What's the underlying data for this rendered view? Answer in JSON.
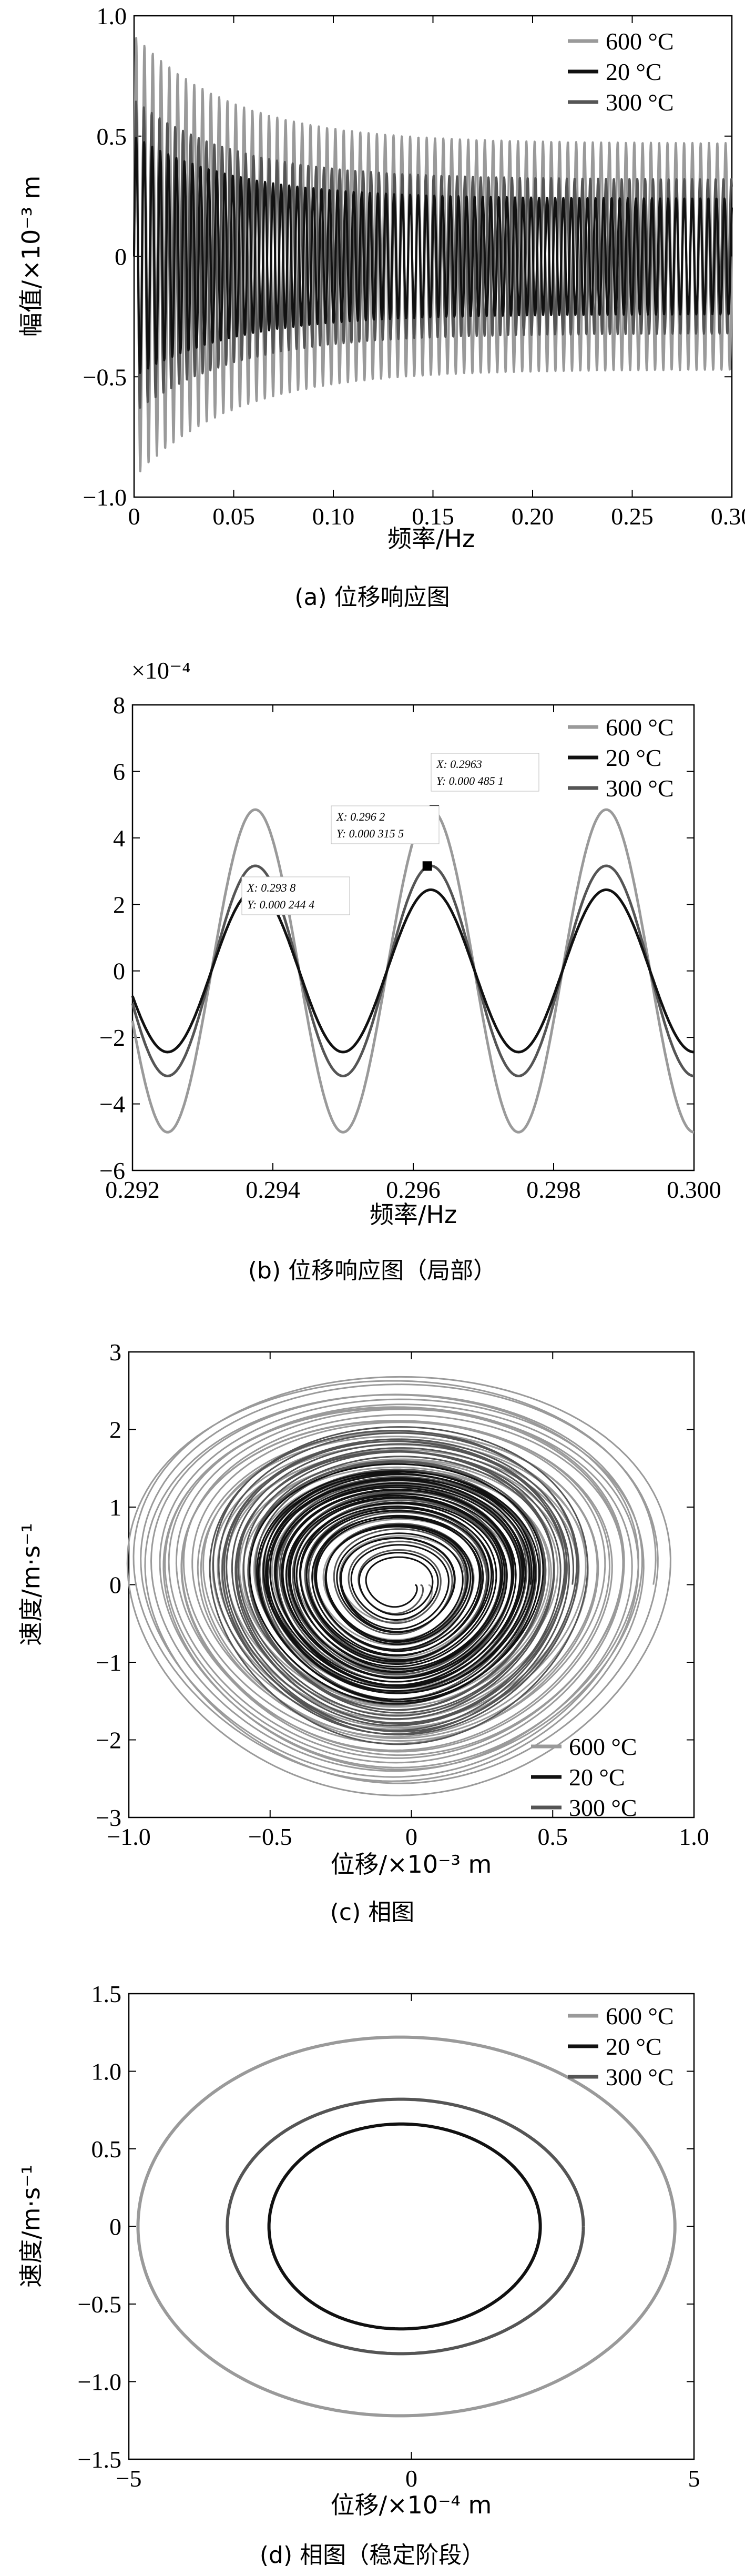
{
  "colors": {
    "s600": "#9a9a9a",
    "s20": "#111111",
    "s300": "#555555"
  },
  "chart_data": [
    {
      "type": "line",
      "caption": "(a) 位移响应图",
      "xlabel": "频率/Hz",
      "ylabel": "幅值/×10⁻³ m",
      "xlim": [
        0,
        0.3
      ],
      "ylim": [
        -1.0,
        1.0
      ],
      "xticks": [
        "0",
        "0.05",
        "0.10",
        "0.15",
        "0.20",
        "0.25",
        "0.30"
      ],
      "yticks": [
        "1.0",
        "0.5",
        "0",
        "−0.5",
        "−1.0"
      ],
      "legend_position": "top-right",
      "series": [
        {
          "name": "600 °C",
          "color": "#9a9a9a",
          "peak_start": 0.92,
          "amplitude_steady": 0.47
        },
        {
          "name": "20 °C",
          "color": "#111111",
          "peak_start": 0.5,
          "amplitude_steady": 0.24
        },
        {
          "name": "300 °C",
          "color": "#555555",
          "peak_start": 0.65,
          "amplitude_steady": 0.32
        }
      ]
    },
    {
      "type": "line",
      "caption": "(b) 位移响应图（局部）",
      "xlabel": "频率/Hz",
      "y_multiplier": "×10⁻⁴",
      "xlim": [
        0.292,
        0.3
      ],
      "ylim": [
        -6,
        8
      ],
      "xticks": [
        "0.292",
        "0.294",
        "0.296",
        "0.298",
        "0.300"
      ],
      "yticks": [
        "8",
        "6",
        "4",
        "2",
        "0",
        "−2",
        "−4",
        "−6"
      ],
      "legend_position": "top-right",
      "series": [
        {
          "name": "600 °C",
          "color": "#9a9a9a",
          "amplitude": 4.85
        },
        {
          "name": "20 °C",
          "color": "#111111",
          "amplitude": 2.44
        },
        {
          "name": "300 °C",
          "color": "#555555",
          "amplitude": 3.16
        }
      ],
      "annotations": [
        {
          "x_label": "X: 0.2963",
          "y_label": "Y: 0.000 485 1",
          "x": 0.2963,
          "y": 4.851
        },
        {
          "x_label": "X: 0.296 2",
          "y_label": "Y: 0.000 315 5",
          "x": 0.2962,
          "y": 3.155
        },
        {
          "x_label": "X: 0.293 8",
          "y_label": "Y: 0.000 244 4",
          "x": 0.2938,
          "y": 2.444
        }
      ]
    },
    {
      "type": "line",
      "caption": "(c) 相图",
      "xlabel": "位移/×10⁻³ m",
      "ylabel": "速度/m·s⁻¹",
      "xlim": [
        -1.0,
        1.0
      ],
      "ylim": [
        -3,
        3
      ],
      "xticks": [
        "−1.0",
        "−0.5",
        "0",
        "0.5",
        "1.0"
      ],
      "yticks": [
        "3",
        "2",
        "1",
        "0",
        "−1",
        "−2",
        "−3"
      ],
      "legend_position": "bottom-right",
      "series": [
        {
          "name": "600 °C",
          "color": "#9a9a9a",
          "max_x": 0.92,
          "max_v": 2.6
        },
        {
          "name": "20 °C",
          "color": "#111111",
          "max_x": 0.5,
          "max_v": 1.5
        },
        {
          "name": "300 °C",
          "color": "#555555",
          "max_x": 0.65,
          "max_v": 2.0
        }
      ]
    },
    {
      "type": "line",
      "caption": "(d) 相图（稳定阶段）",
      "xlabel": "位移/×10⁻⁴ m",
      "ylabel": "速度/m·s⁻¹",
      "xlim": [
        -5,
        5
      ],
      "ylim": [
        -1.5,
        1.5
      ],
      "xticks": [
        "−5",
        "0",
        "5"
      ],
      "yticks": [
        "1.5",
        "1.0",
        "0.5",
        "0",
        "−0.5",
        "−1.0",
        "−1.5"
      ],
      "legend_position": "top-right",
      "series": [
        {
          "name": "600 °C",
          "color": "#9a9a9a",
          "xmin": -4.6,
          "xmax": 4.9,
          "vmax": 1.22
        },
        {
          "name": "20 °C",
          "color": "#111111",
          "xmin": -2.4,
          "xmax": 2.4,
          "vmax": 0.66
        },
        {
          "name": "300 °C",
          "color": "#555555",
          "xmin": -3.1,
          "xmax": 3.2,
          "vmax": 0.82
        }
      ]
    }
  ]
}
